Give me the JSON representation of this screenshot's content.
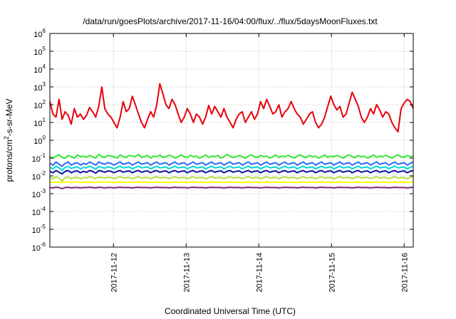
{
  "chart_data": {
    "type": "line",
    "title": "/data/run/goesPlots/archive/2017-11-16/04:00/flux/../flux/5daysMoonFluxes.txt",
    "xlabel": "Coordinated Universal Time (UTC)",
    "ylabel_parts": {
      "base": "protons/cm",
      "sup": "2",
      "rest": "-s-sr-MeV"
    },
    "yscale": "log",
    "ylim": [
      1e-06,
      1000000.0
    ],
    "xlim": [
      "2017-11-11T03:00",
      "2017-11-16T03:00"
    ],
    "x_ticks": [
      "2017-11-12",
      "2017-11-13",
      "2017-11-14",
      "2017-11-15",
      "2017-11-16"
    ],
    "y_ticks": [
      {
        "base": "10",
        "exp": "-6"
      },
      {
        "base": "10",
        "exp": "-5"
      },
      {
        "base": "10",
        "exp": "-4"
      },
      {
        "base": "10",
        "exp": "-3"
      },
      {
        "base": "10",
        "exp": "-2"
      },
      {
        "base": "10",
        "exp": "-1"
      },
      {
        "base": "10",
        "exp": "0"
      },
      {
        "base": "10",
        "exp": "1"
      },
      {
        "base": "10",
        "exp": "2"
      },
      {
        "base": "10",
        "exp": "3"
      },
      {
        "base": "10",
        "exp": "4"
      },
      {
        "base": "10",
        "exp": "5"
      },
      {
        "base": "10",
        "exp": "6"
      }
    ],
    "grid": true,
    "series": [
      {
        "color": "#e8000b",
        "values": [
          150,
          30,
          20,
          200,
          15,
          40,
          25,
          8,
          60,
          20,
          30,
          15,
          25,
          70,
          40,
          20,
          80,
          1000,
          60,
          30,
          20,
          10,
          5,
          20,
          150,
          40,
          60,
          300,
          100,
          30,
          10,
          5,
          15,
          40,
          20,
          100,
          1500,
          400,
          100,
          60,
          200,
          100,
          30,
          10,
          20,
          60,
          30,
          10,
          30,
          20,
          8,
          20,
          90,
          30,
          80,
          40,
          20,
          60,
          20,
          10,
          5,
          15,
          30,
          40,
          10,
          20,
          40,
          15,
          30,
          150,
          60,
          200,
          80,
          30,
          40,
          100,
          20,
          40,
          60,
          150,
          60,
          30,
          20,
          8,
          15,
          30,
          40,
          10,
          5,
          8,
          20,
          80,
          300,
          100,
          50,
          80,
          20,
          30,
          120,
          500,
          200,
          80,
          20,
          10,
          20,
          60,
          30,
          100,
          50,
          20,
          40,
          30,
          10,
          5,
          3,
          60,
          120,
          200,
          150,
          60
        ]
      },
      {
        "color": "#2ee82e",
        "values": [
          0.12,
          0.1,
          0.13,
          0.15,
          0.11,
          0.1,
          0.14,
          0.12,
          0.1,
          0.15,
          0.12,
          0.13,
          0.11,
          0.14,
          0.12,
          0.1,
          0.16,
          0.12,
          0.11,
          0.14,
          0.13,
          0.12,
          0.1,
          0.15,
          0.12,
          0.11,
          0.14,
          0.13,
          0.12,
          0.16,
          0.11,
          0.12,
          0.14,
          0.1,
          0.13,
          0.12,
          0.15,
          0.11,
          0.12,
          0.14,
          0.13,
          0.1,
          0.12,
          0.15,
          0.12,
          0.11,
          0.14,
          0.12,
          0.13,
          0.1,
          0.12,
          0.15,
          0.11,
          0.13,
          0.12,
          0.14,
          0.1,
          0.12,
          0.16,
          0.13,
          0.11,
          0.12,
          0.14,
          0.12,
          0.1,
          0.13,
          0.15,
          0.12,
          0.11,
          0.14,
          0.12,
          0.13,
          0.1,
          0.12,
          0.15,
          0.11,
          0.13,
          0.12,
          0.14,
          0.12,
          0.1,
          0.13,
          0.15,
          0.12,
          0.11,
          0.14,
          0.12,
          0.13,
          0.1,
          0.12,
          0.15,
          0.11,
          0.13,
          0.12,
          0.14,
          0.12,
          0.1,
          0.13,
          0.15,
          0.12,
          0.11,
          0.14,
          0.12,
          0.13,
          0.1,
          0.12,
          0.15,
          0.11,
          0.13,
          0.12,
          0.14,
          0.12,
          0.1,
          0.13,
          0.15,
          0.12,
          0.11,
          0.14,
          0.12,
          0.13
        ]
      },
      {
        "color": "#2e64ff",
        "values": [
          0.05,
          0.04,
          0.06,
          0.045,
          0.035,
          0.05,
          0.06,
          0.04,
          0.05,
          0.055,
          0.04,
          0.05,
          0.045,
          0.06,
          0.05,
          0.04,
          0.06,
          0.05,
          0.045,
          0.055,
          0.05,
          0.04,
          0.05,
          0.06,
          0.045,
          0.05,
          0.055,
          0.04,
          0.05,
          0.06,
          0.045,
          0.05,
          0.055,
          0.04,
          0.05,
          0.06,
          0.045,
          0.05,
          0.055,
          0.04,
          0.05,
          0.06,
          0.045,
          0.05,
          0.055,
          0.04,
          0.05,
          0.06,
          0.045,
          0.05,
          0.055,
          0.04,
          0.05,
          0.06,
          0.045,
          0.05,
          0.055,
          0.04,
          0.05,
          0.06,
          0.045,
          0.05,
          0.055,
          0.04,
          0.05,
          0.06,
          0.045,
          0.05,
          0.055,
          0.04,
          0.05,
          0.06,
          0.045,
          0.05,
          0.055,
          0.04,
          0.05,
          0.06,
          0.045,
          0.05,
          0.055,
          0.04,
          0.05,
          0.06,
          0.045,
          0.05,
          0.055,
          0.04,
          0.05,
          0.06,
          0.045,
          0.05,
          0.055,
          0.04,
          0.05,
          0.06,
          0.045,
          0.05,
          0.055,
          0.04,
          0.05,
          0.06,
          0.045,
          0.05,
          0.055,
          0.04,
          0.05,
          0.06,
          0.045,
          0.05,
          0.055,
          0.04,
          0.05,
          0.06,
          0.045,
          0.05,
          0.055,
          0.04,
          0.05,
          0.06
        ]
      },
      {
        "color": "#00d8d8",
        "values": [
          0.03,
          0.025,
          0.035,
          0.028,
          0.02,
          0.03,
          0.034,
          0.026,
          0.03,
          0.032,
          0.025,
          0.03,
          0.028,
          0.035,
          0.03,
          0.024,
          0.034,
          0.03,
          0.027,
          0.032,
          0.03,
          0.025,
          0.03,
          0.035,
          0.028,
          0.03,
          0.032,
          0.025,
          0.03,
          0.035,
          0.028,
          0.03,
          0.032,
          0.025,
          0.03,
          0.035,
          0.028,
          0.03,
          0.032,
          0.025,
          0.03,
          0.035,
          0.028,
          0.03,
          0.032,
          0.025,
          0.03,
          0.035,
          0.028,
          0.03,
          0.032,
          0.025,
          0.03,
          0.035,
          0.028,
          0.03,
          0.032,
          0.025,
          0.03,
          0.035,
          0.028,
          0.03,
          0.032,
          0.025,
          0.03,
          0.035,
          0.028,
          0.03,
          0.032,
          0.025,
          0.03,
          0.035,
          0.028,
          0.03,
          0.032,
          0.025,
          0.03,
          0.035,
          0.028,
          0.03,
          0.032,
          0.025,
          0.03,
          0.035,
          0.028,
          0.03,
          0.032,
          0.025,
          0.03,
          0.035,
          0.028,
          0.03,
          0.032,
          0.025,
          0.03,
          0.035,
          0.028,
          0.03,
          0.032,
          0.025,
          0.03,
          0.035,
          0.028,
          0.03,
          0.032,
          0.025,
          0.03,
          0.035,
          0.028,
          0.03,
          0.032,
          0.025,
          0.03,
          0.035,
          0.028,
          0.03,
          0.032,
          0.025,
          0.03,
          0.035
        ]
      },
      {
        "color": "#0a14a0",
        "values": [
          0.018,
          0.015,
          0.02,
          0.016,
          0.013,
          0.018,
          0.02,
          0.015,
          0.018,
          0.019,
          0.015,
          0.018,
          0.016,
          0.02,
          0.018,
          0.014,
          0.02,
          0.018,
          0.016,
          0.019,
          0.018,
          0.015,
          0.018,
          0.02,
          0.016,
          0.018,
          0.019,
          0.015,
          0.018,
          0.02,
          0.016,
          0.018,
          0.019,
          0.015,
          0.018,
          0.02,
          0.016,
          0.018,
          0.019,
          0.015,
          0.018,
          0.02,
          0.016,
          0.018,
          0.019,
          0.015,
          0.018,
          0.02,
          0.016,
          0.018,
          0.019,
          0.015,
          0.018,
          0.02,
          0.016,
          0.018,
          0.019,
          0.015,
          0.018,
          0.02,
          0.016,
          0.018,
          0.019,
          0.015,
          0.018,
          0.02,
          0.016,
          0.018,
          0.019,
          0.015,
          0.018,
          0.02,
          0.016,
          0.018,
          0.019,
          0.015,
          0.018,
          0.02,
          0.016,
          0.018,
          0.019,
          0.015,
          0.018,
          0.02,
          0.016,
          0.018,
          0.019,
          0.015,
          0.018,
          0.02,
          0.016,
          0.018,
          0.019,
          0.015,
          0.018,
          0.02,
          0.016,
          0.018,
          0.019,
          0.015,
          0.018,
          0.02,
          0.016,
          0.018,
          0.019,
          0.015,
          0.018,
          0.02,
          0.016,
          0.018,
          0.019,
          0.015,
          0.018,
          0.02,
          0.016,
          0.018,
          0.019,
          0.015,
          0.018,
          0.02
        ]
      },
      {
        "color": "#b0e040",
        "values": [
          0.008,
          0.007,
          0.009,
          0.0075,
          0.005,
          0.008,
          0.0085,
          0.007,
          0.008,
          0.0082,
          0.007,
          0.008,
          0.0075,
          0.009,
          0.008,
          0.007,
          0.0085,
          0.008,
          0.0076,
          0.0082,
          0.008,
          0.007,
          0.008,
          0.009,
          0.0075,
          0.008,
          0.0082,
          0.007,
          0.008,
          0.009,
          0.0075,
          0.008,
          0.0082,
          0.007,
          0.008,
          0.009,
          0.0075,
          0.008,
          0.0082,
          0.007,
          0.008,
          0.009,
          0.0075,
          0.008,
          0.0082,
          0.007,
          0.008,
          0.009,
          0.0075,
          0.008,
          0.0082,
          0.007,
          0.008,
          0.009,
          0.0075,
          0.008,
          0.0082,
          0.007,
          0.008,
          0.009,
          0.0075,
          0.008,
          0.0082,
          0.007,
          0.008,
          0.009,
          0.0075,
          0.008,
          0.0082,
          0.007,
          0.008,
          0.009,
          0.0075,
          0.008,
          0.0082,
          0.007,
          0.008,
          0.009,
          0.0075,
          0.008,
          0.0082,
          0.007,
          0.008,
          0.009,
          0.0075,
          0.008,
          0.0082,
          0.007,
          0.008,
          0.009,
          0.0075,
          0.008,
          0.0082,
          0.007,
          0.008,
          0.009,
          0.0075,
          0.008,
          0.0082,
          0.007,
          0.008,
          0.009,
          0.0075,
          0.008,
          0.0082,
          0.007,
          0.008,
          0.009,
          0.0075,
          0.008,
          0.0082,
          0.007,
          0.008,
          0.009,
          0.0075,
          0.008,
          0.0082,
          0.007,
          0.008,
          0.009
        ]
      },
      {
        "color": "#ffff00",
        "values": [
          0.0045,
          0.0042,
          0.0046,
          0.0044,
          0.0043,
          0.0045,
          0.0046,
          0.0044,
          0.0045,
          0.0045,
          0.0043,
          0.0045,
          0.0044,
          0.0046,
          0.0045,
          0.0043,
          0.0046,
          0.0045,
          0.0044,
          0.0045,
          0.0045,
          0.0043,
          0.0045,
          0.0046,
          0.0044,
          0.0045,
          0.0045,
          0.0043,
          0.0045,
          0.0046,
          0.0044,
          0.0045,
          0.0045,
          0.0043,
          0.0045,
          0.0046,
          0.0044,
          0.0045,
          0.0045,
          0.0043,
          0.0045,
          0.0046,
          0.0044,
          0.0045,
          0.0045,
          0.0043,
          0.0045,
          0.0046,
          0.0044,
          0.0045,
          0.0045,
          0.0043,
          0.0045,
          0.0046,
          0.0044,
          0.0045,
          0.0045,
          0.0043,
          0.0045,
          0.0046,
          0.0044,
          0.0045,
          0.0045,
          0.0043,
          0.0045,
          0.0046,
          0.0044,
          0.0045,
          0.0045,
          0.0043,
          0.0045,
          0.0046,
          0.0044,
          0.0045,
          0.0045,
          0.0043,
          0.0045,
          0.0046,
          0.0044,
          0.0045,
          0.0045,
          0.0043,
          0.0045,
          0.0046,
          0.0044,
          0.0045,
          0.0045,
          0.0043,
          0.0045,
          0.0046,
          0.0044,
          0.0045,
          0.0045,
          0.0043,
          0.0045,
          0.0046,
          0.0044,
          0.0045,
          0.0045,
          0.0043,
          0.0045,
          0.0046,
          0.0044,
          0.0045,
          0.0045,
          0.0043,
          0.0045,
          0.0046,
          0.0044,
          0.0045,
          0.0045,
          0.0043,
          0.0045,
          0.0046,
          0.0044,
          0.0045,
          0.0045,
          0.0043,
          0.0045,
          0.0046
        ]
      },
      {
        "color": "#7a2878",
        "values": [
          0.0022,
          0.0021,
          0.0023,
          0.0022,
          0.0019,
          0.0022,
          0.0023,
          0.0021,
          0.0022,
          0.0022,
          0.0021,
          0.0022,
          0.0022,
          0.0023,
          0.0022,
          0.0021,
          0.0023,
          0.0022,
          0.0021,
          0.0022,
          0.0022,
          0.0021,
          0.0022,
          0.0023,
          0.0022,
          0.0022,
          0.0022,
          0.0021,
          0.0022,
          0.0023,
          0.0022,
          0.0022,
          0.0022,
          0.0021,
          0.0022,
          0.0023,
          0.0022,
          0.0022,
          0.0022,
          0.0021,
          0.0022,
          0.0023,
          0.0022,
          0.0022,
          0.0022,
          0.0021,
          0.0022,
          0.0023,
          0.0022,
          0.0022,
          0.0022,
          0.0021,
          0.0022,
          0.0023,
          0.0022,
          0.0022,
          0.0022,
          0.0021,
          0.0022,
          0.0023,
          0.0022,
          0.0022,
          0.0022,
          0.0021,
          0.0022,
          0.0023,
          0.0022,
          0.0022,
          0.0022,
          0.0021,
          0.0022,
          0.0023,
          0.0022,
          0.0022,
          0.0022,
          0.0021,
          0.0022,
          0.0023,
          0.0022,
          0.0022,
          0.0022,
          0.0021,
          0.0022,
          0.0023,
          0.0022,
          0.0022,
          0.0022,
          0.0021,
          0.0022,
          0.0023,
          0.0022,
          0.0022,
          0.0022,
          0.0021,
          0.0022,
          0.0023,
          0.0022,
          0.0022,
          0.0022,
          0.0021,
          0.0022,
          0.0023,
          0.0022,
          0.0022,
          0.0022,
          0.0021,
          0.0022,
          0.0023,
          0.0022,
          0.0022,
          0.0022,
          0.0021,
          0.0022,
          0.0023,
          0.0022,
          0.0022,
          0.0022,
          0.0021,
          0.0022,
          0.0023
        ]
      }
    ]
  }
}
